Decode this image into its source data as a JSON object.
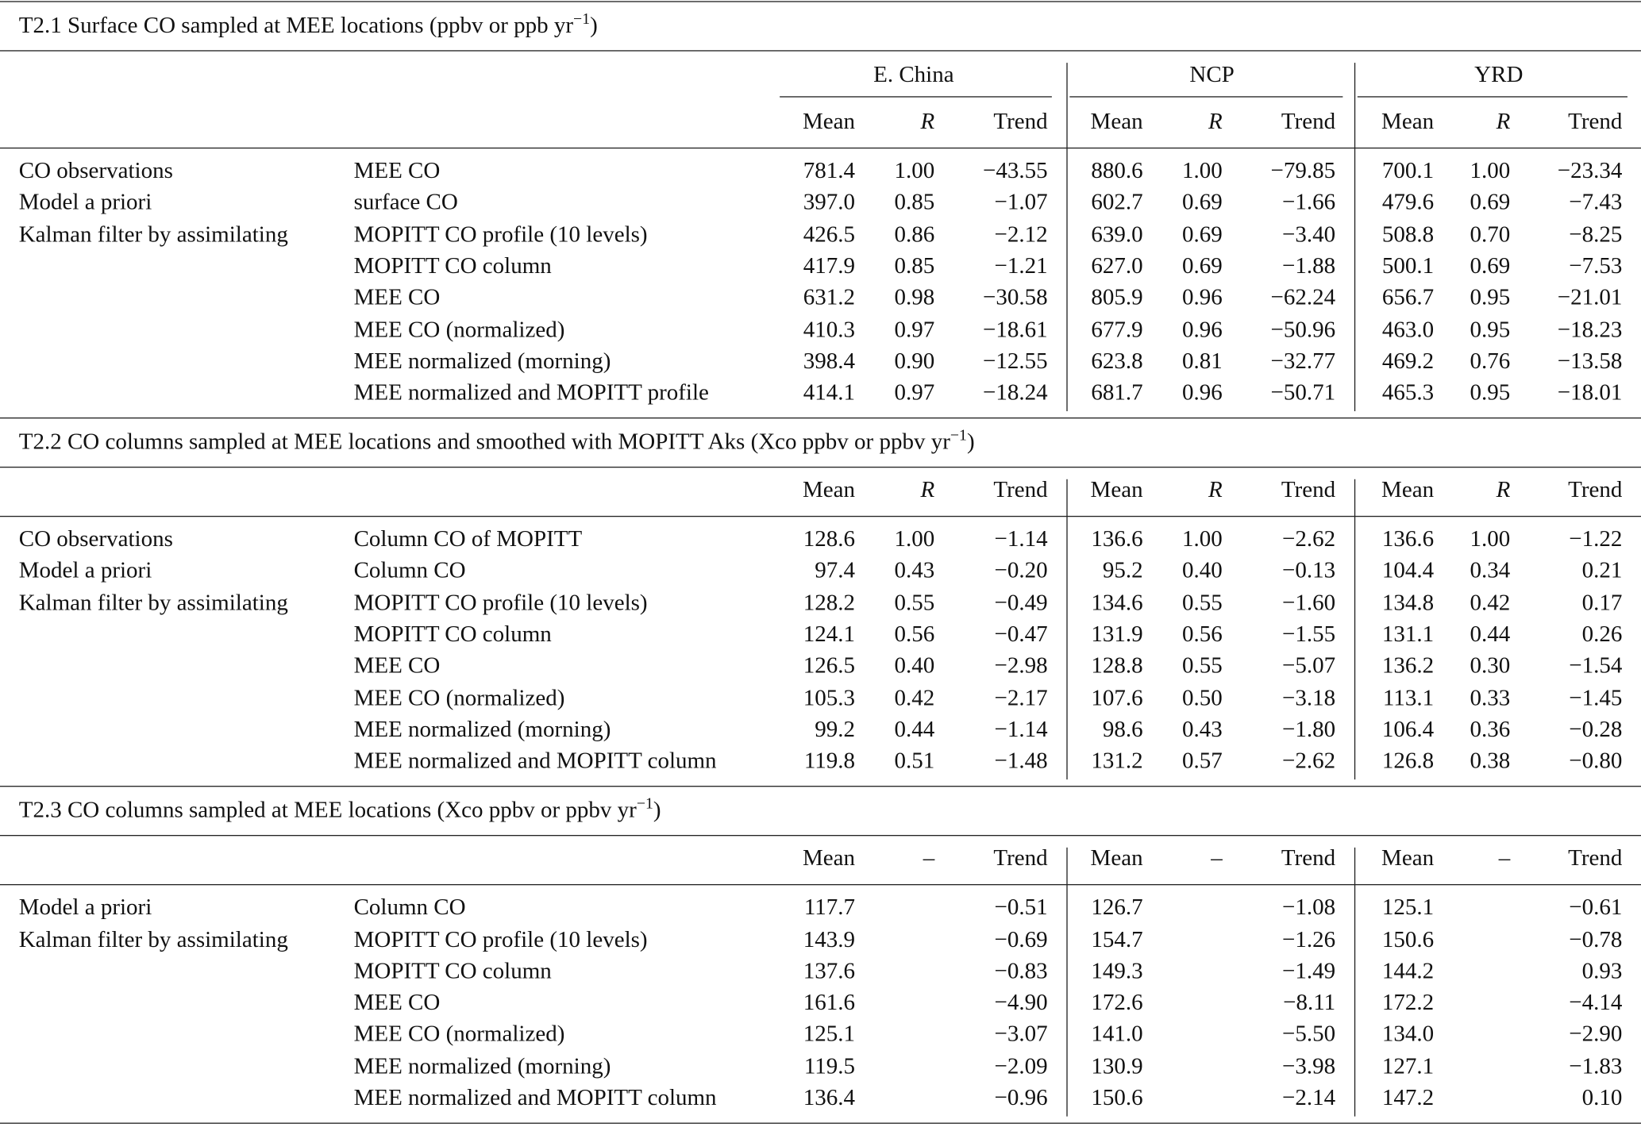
{
  "sections": [
    {
      "title": {
        "text": "T2.1 Surface CO sampled at MEE locations (ppbv or ppb yr",
        "sup": "−1",
        "tail": ")"
      },
      "regions": [
        "E. China",
        "NCP",
        "YRD"
      ],
      "subheaders": [
        "Mean",
        "R",
        "Trend",
        "Mean",
        "R",
        "Trend",
        "Mean",
        "R",
        "Trend"
      ],
      "rows": [
        {
          "group": "CO observations",
          "label": "MEE CO",
          "values": [
            "781.4",
            "1.00",
            "−43.55",
            "880.6",
            "1.00",
            "−79.85",
            "700.1",
            "1.00",
            "−23.34"
          ]
        },
        {
          "group": "Model a priori",
          "label": "surface CO",
          "values": [
            "397.0",
            "0.85",
            "−1.07",
            "602.7",
            "0.69",
            "−1.66",
            "479.6",
            "0.69",
            "−7.43"
          ]
        },
        {
          "group": "Kalman filter by assimilating",
          "label": "MOPITT CO profile (10 levels)",
          "values": [
            "426.5",
            "0.86",
            "−2.12",
            "639.0",
            "0.69",
            "−3.40",
            "508.8",
            "0.70",
            "−8.25"
          ]
        },
        {
          "group": null,
          "label": "MOPITT CO column",
          "values": [
            "417.9",
            "0.85",
            "−1.21",
            "627.0",
            "0.69",
            "−1.88",
            "500.1",
            "0.69",
            "−7.53"
          ]
        },
        {
          "group": null,
          "label": "MEE CO",
          "values": [
            "631.2",
            "0.98",
            "−30.58",
            "805.9",
            "0.96",
            "−62.24",
            "656.7",
            "0.95",
            "−21.01"
          ]
        },
        {
          "group": null,
          "label": "MEE CO (normalized)",
          "values": [
            "410.3",
            "0.97",
            "−18.61",
            "677.9",
            "0.96",
            "−50.96",
            "463.0",
            "0.95",
            "−18.23"
          ]
        },
        {
          "group": null,
          "label": "MEE normalized (morning)",
          "values": [
            "398.4",
            "0.90",
            "−12.55",
            "623.8",
            "0.81",
            "−32.77",
            "469.2",
            "0.76",
            "−13.58"
          ]
        },
        {
          "group": null,
          "label": "MEE normalized and MOPITT profile",
          "values": [
            "414.1",
            "0.97",
            "−18.24",
            "681.7",
            "0.96",
            "−50.71",
            "465.3",
            "0.95",
            "−18.01"
          ]
        }
      ]
    },
    {
      "title": {
        "text": "T2.2 CO columns sampled at MEE locations and smoothed with MOPITT Aks (Xco ppbv or ppbv yr",
        "sup": "−1",
        "tail": ")"
      },
      "subheaders": [
        "Mean",
        "R",
        "Trend",
        "Mean",
        "R",
        "Trend",
        "Mean",
        "R",
        "Trend"
      ],
      "rows": [
        {
          "group": "CO observations",
          "label": "Column CO of MOPITT",
          "values": [
            "128.6",
            "1.00",
            "−1.14",
            "136.6",
            "1.00",
            "−2.62",
            "136.6",
            "1.00",
            "−1.22"
          ]
        },
        {
          "group": "Model a priori",
          "label": "Column CO",
          "values": [
            "97.4",
            "0.43",
            "−0.20",
            "95.2",
            "0.40",
            "−0.13",
            "104.4",
            "0.34",
            "0.21"
          ]
        },
        {
          "group": "Kalman filter by assimilating",
          "label": "MOPITT CO profile (10 levels)",
          "values": [
            "128.2",
            "0.55",
            "−0.49",
            "134.6",
            "0.55",
            "−1.60",
            "134.8",
            "0.42",
            "0.17"
          ]
        },
        {
          "group": null,
          "label": "MOPITT CO column",
          "values": [
            "124.1",
            "0.56",
            "−0.47",
            "131.9",
            "0.56",
            "−1.55",
            "131.1",
            "0.44",
            "0.26"
          ]
        },
        {
          "group": null,
          "label": "MEE CO",
          "values": [
            "126.5",
            "0.40",
            "−2.98",
            "128.8",
            "0.55",
            "−5.07",
            "136.2",
            "0.30",
            "−1.54"
          ]
        },
        {
          "group": null,
          "label": "MEE CO (normalized)",
          "values": [
            "105.3",
            "0.42",
            "−2.17",
            "107.6",
            "0.50",
            "−3.18",
            "113.1",
            "0.33",
            "−1.45"
          ]
        },
        {
          "group": null,
          "label": "MEE normalized (morning)",
          "values": [
            "99.2",
            "0.44",
            "−1.14",
            "98.6",
            "0.43",
            "−1.80",
            "106.4",
            "0.36",
            "−0.28"
          ]
        },
        {
          "group": null,
          "label": "MEE normalized and MOPITT column",
          "values": [
            "119.8",
            "0.51",
            "−1.48",
            "131.2",
            "0.57",
            "−2.62",
            "126.8",
            "0.38",
            "−0.80"
          ]
        }
      ]
    },
    {
      "title": {
        "text": "T2.3 CO columns sampled at MEE locations (Xco ppbv or ppbv yr",
        "sup": "−1",
        "tail": ")"
      },
      "subheaders": [
        "Mean",
        "–",
        "Trend",
        "Mean",
        "–",
        "Trend",
        "Mean",
        "–",
        "Trend"
      ],
      "rows": [
        {
          "group": "Model a priori",
          "label": "Column CO",
          "values": [
            "117.7",
            null,
            "−0.51",
            "126.7",
            null,
            "−1.08",
            "125.1",
            null,
            "−0.61"
          ]
        },
        {
          "group": "Kalman filter by assimilating",
          "label": "MOPITT CO profile (10 levels)",
          "values": [
            "143.9",
            null,
            "−0.69",
            "154.7",
            null,
            "−1.26",
            "150.6",
            null,
            "−0.78"
          ]
        },
        {
          "group": null,
          "label": "MOPITT CO column",
          "values": [
            "137.6",
            null,
            "−0.83",
            "149.3",
            null,
            "−1.49",
            "144.2",
            null,
            "0.93"
          ]
        },
        {
          "group": null,
          "label": "MEE CO",
          "values": [
            "161.6",
            null,
            "−4.90",
            "172.6",
            null,
            "−8.11",
            "172.2",
            null,
            "−4.14"
          ]
        },
        {
          "group": null,
          "label": "MEE CO (normalized)",
          "values": [
            "125.1",
            null,
            "−3.07",
            "141.0",
            null,
            "−5.50",
            "134.0",
            null,
            "−2.90"
          ]
        },
        {
          "group": null,
          "label": "MEE normalized (morning)",
          "values": [
            "119.5",
            null,
            "−2.09",
            "130.9",
            null,
            "−3.98",
            "127.1",
            null,
            "−1.83"
          ]
        },
        {
          "group": null,
          "label": "MEE normalized and MOPITT column",
          "values": [
            "136.4",
            null,
            "−0.96",
            "150.6",
            null,
            "−2.14",
            "147.2",
            null,
            "0.10"
          ]
        }
      ]
    }
  ]
}
